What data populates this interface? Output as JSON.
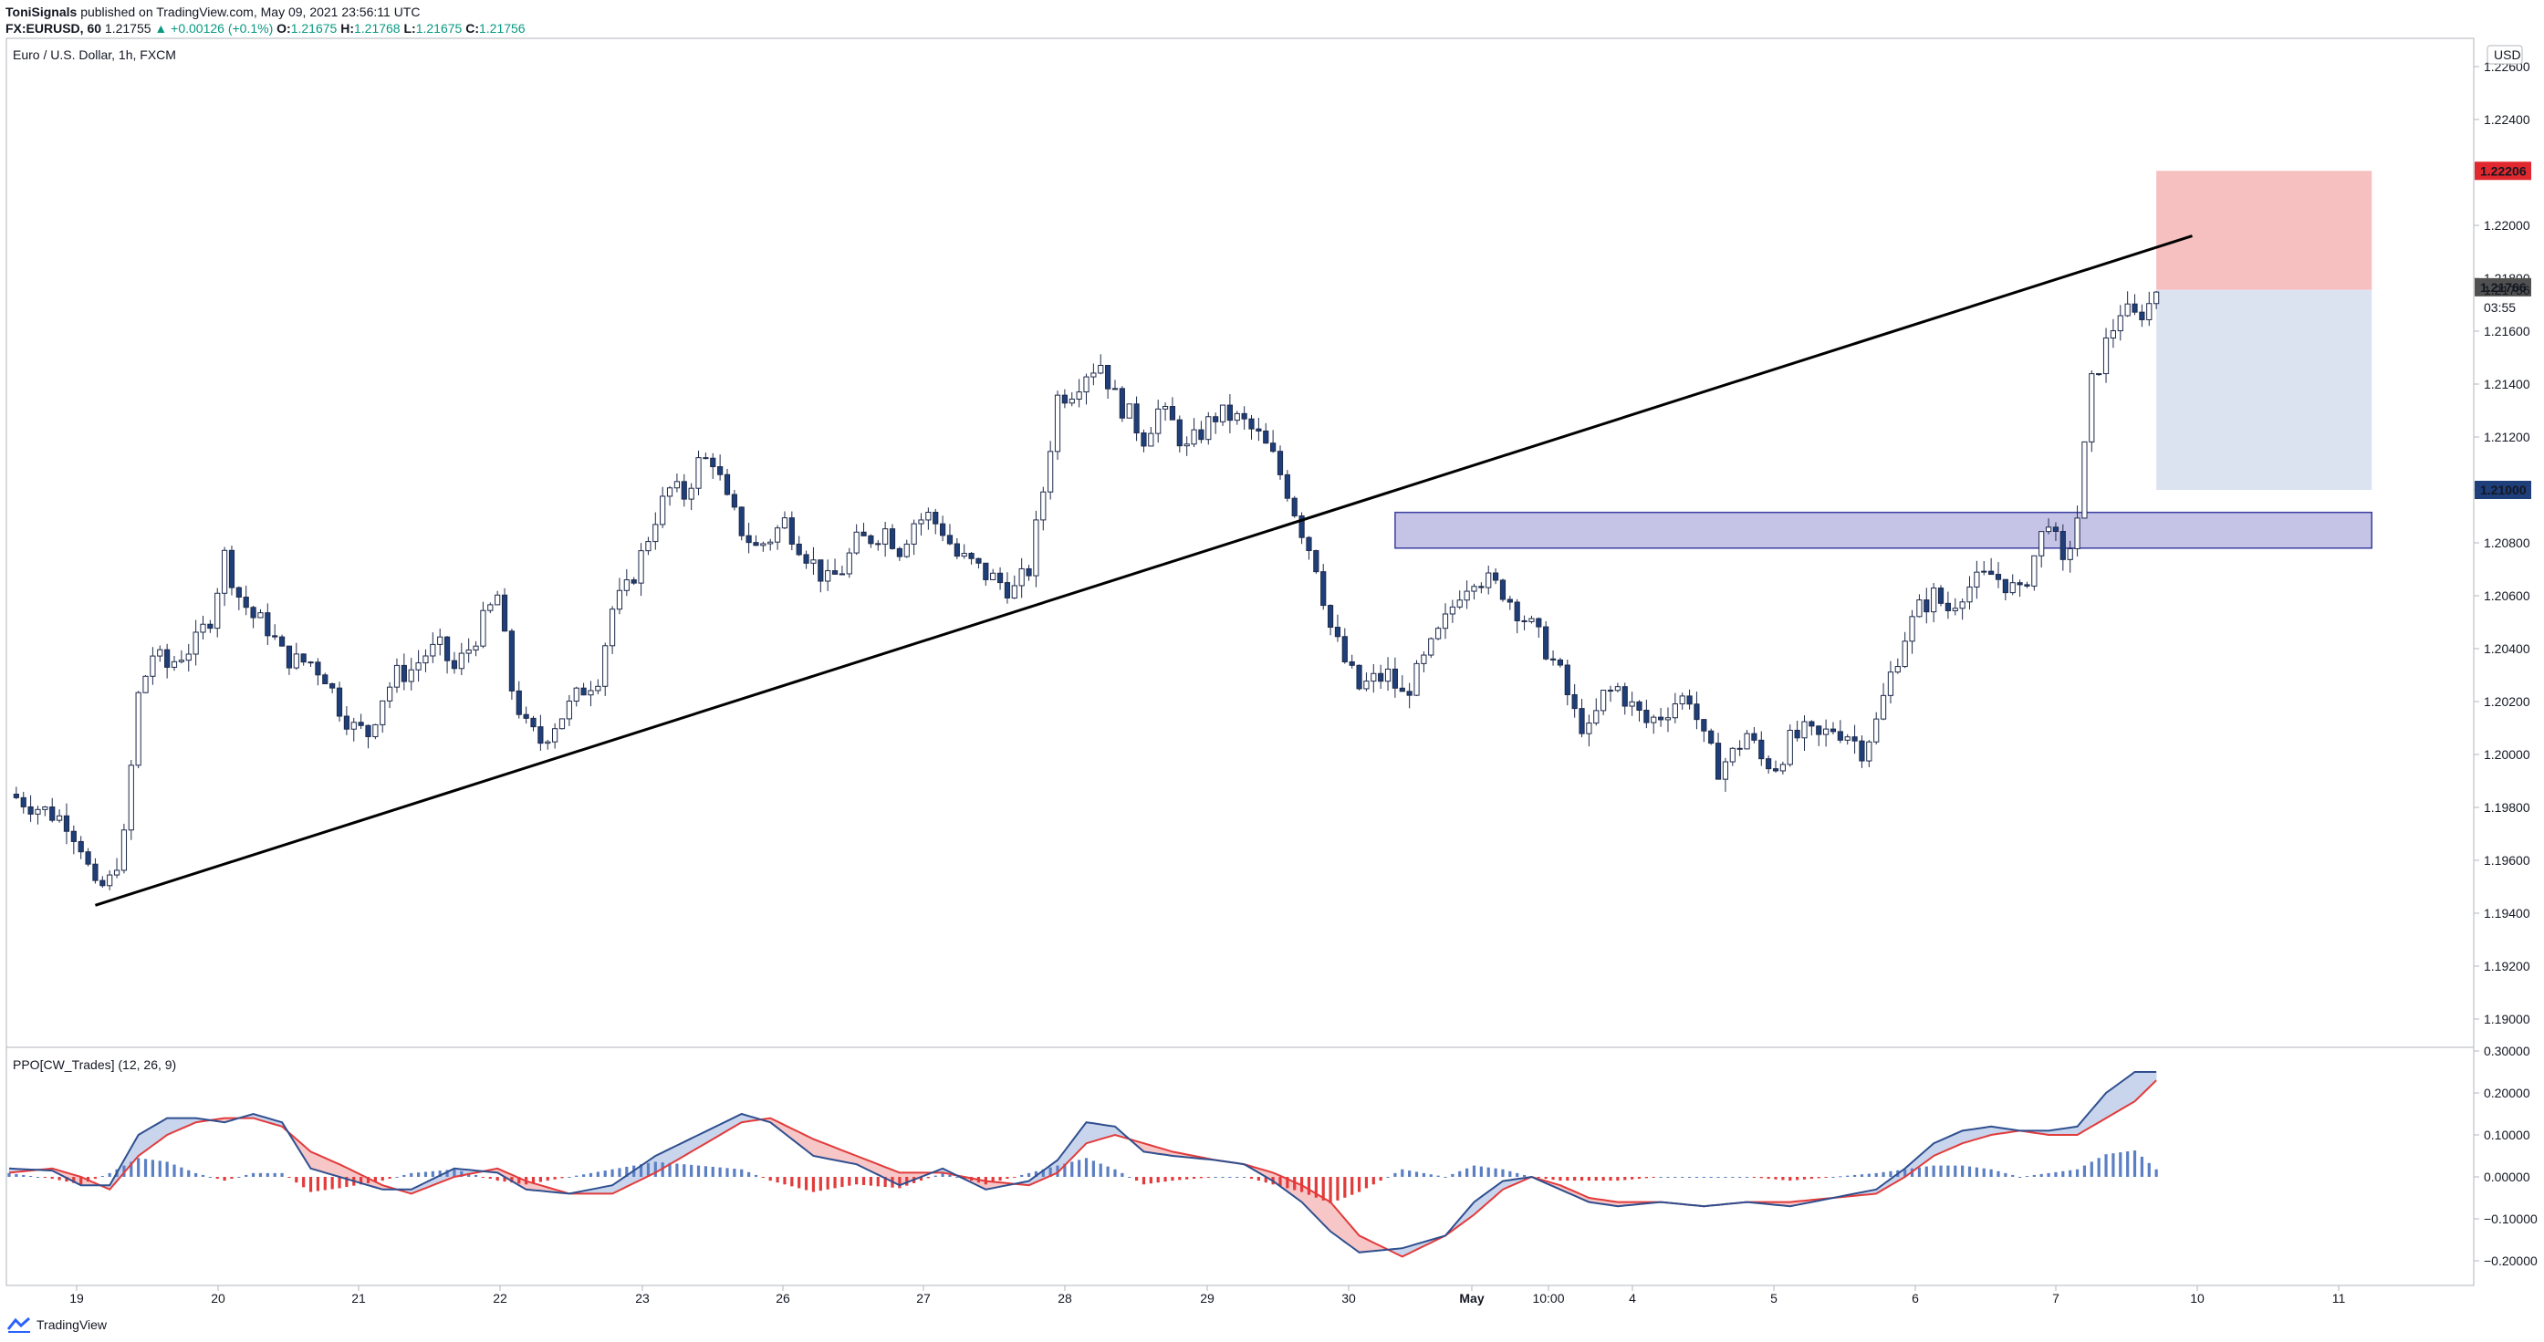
{
  "header": {
    "publisher": "ToniSignals",
    "published_line": " published on TradingView.com, May 09, 2021 23:56:11 UTC",
    "symbol": "FX:EURUSD, 60",
    "last": "1.21755",
    "change": "▲ +0.00126 (+0.1%)",
    "o_label": "O:",
    "o": "1.21675",
    "h_label": "H:",
    "h": "1.21768",
    "l_label": "L:",
    "l": "1.21675",
    "c_label": "C:",
    "c": "1.21756"
  },
  "chart_title": "Euro / U.S. Dollar, 1h, FXCM",
  "currency_badge": "USD",
  "indicator_title": "PPO[CW_Trades] (12, 26, 9)",
  "footer": {
    "brand": "TradingView"
  },
  "colors": {
    "candle_up": "#ffffff",
    "candle_down": "#1e3f7a",
    "stop_zone": "#f7c0c0",
    "target_zone": "#dbe3f0",
    "demand_zone": "#c5c3e6",
    "ppo_blue": "#5b7fc4",
    "ppo_red": "#e23b3b",
    "ppo_fill_blue": "#c9d5ec",
    "ppo_fill_red": "#f7c6c6",
    "price_badge_red": "#e0282e",
    "price_badge_blue": "#1e3f7a",
    "price_badge_gray": "#505050"
  },
  "chart_data": [
    {
      "type": "candlestick",
      "title": "Euro / U.S. Dollar, 1h, FXCM",
      "x_tick_labels": [
        "19",
        "20",
        "21",
        "22",
        "23",
        "26",
        "27",
        "28",
        "29",
        "30",
        "May",
        "10:00",
        "4",
        "5",
        "6",
        "7",
        "10",
        "11"
      ],
      "y_tick_labels": [
        "1.22600",
        "1.22400",
        "1.22200",
        "1.22000",
        "1.21800",
        "1.21600",
        "1.21400",
        "1.21200",
        "1.21000",
        "1.20800",
        "1.20600",
        "1.20400",
        "1.20200",
        "1.20000",
        "1.19800",
        "1.19600",
        "1.19400",
        "1.19200",
        "1.19000"
      ],
      "ylim": [
        1.189,
        1.227
      ],
      "close_path": [
        [
          0,
          1.1985
        ],
        [
          4,
          1.198
        ],
        [
          8,
          1.1975
        ],
        [
          10,
          1.1966
        ],
        [
          12,
          1.1948
        ],
        [
          14,
          1.1952
        ],
        [
          16,
          1.1968
        ],
        [
          18,
          1.2022
        ],
        [
          20,
          1.2038
        ],
        [
          22,
          1.2033
        ],
        [
          24,
          1.2038
        ],
        [
          26,
          1.2042
        ],
        [
          28,
          1.2052
        ],
        [
          30,
          1.2075
        ],
        [
          32,
          1.206
        ],
        [
          34,
          1.2052
        ],
        [
          36,
          1.2048
        ],
        [
          38,
          1.2038
        ],
        [
          40,
          1.2035
        ],
        [
          42,
          1.2035
        ],
        [
          44,
          1.203
        ],
        [
          46,
          1.2018
        ],
        [
          48,
          1.201
        ],
        [
          50,
          1.2008
        ],
        [
          52,
          1.2022
        ],
        [
          54,
          1.203
        ],
        [
          56,
          1.2032
        ],
        [
          58,
          1.2038
        ],
        [
          60,
          1.204
        ],
        [
          62,
          1.2032
        ],
        [
          64,
          1.204
        ],
        [
          66,
          1.205
        ],
        [
          68,
          1.206
        ],
        [
          70,
          1.2025
        ],
        [
          72,
          1.201
        ],
        [
          74,
          1.2005
        ],
        [
          76,
          1.2012
        ],
        [
          78,
          1.2018
        ],
        [
          80,
          1.2025
        ],
        [
          82,
          1.203
        ],
        [
          84,
          1.2055
        ],
        [
          86,
          1.2062
        ],
        [
          88,
          1.2075
        ],
        [
          90,
          1.209
        ],
        [
          92,
          1.21
        ],
        [
          94,
          1.2098
        ],
        [
          96,
          1.211
        ],
        [
          98,
          1.2112
        ],
        [
          100,
          1.2095
        ],
        [
          102,
          1.2085
        ],
        [
          104,
          1.2078
        ],
        [
          106,
          1.2082
        ],
        [
          108,
          1.2088
        ],
        [
          110,
          1.208
        ],
        [
          112,
          1.2072
        ],
        [
          114,
          1.2065
        ],
        [
          116,
          1.207
        ],
        [
          118,
          1.208
        ],
        [
          120,
          1.2082
        ],
        [
          122,
          1.2085
        ],
        [
          124,
          1.2078
        ],
        [
          126,
          1.2088
        ],
        [
          128,
          1.209
        ],
        [
          130,
          1.2085
        ],
        [
          132,
          1.2075
        ],
        [
          134,
          1.2072
        ],
        [
          136,
          1.2068
        ],
        [
          138,
          1.2065
        ],
        [
          140,
          1.2062
        ],
        [
          142,
          1.207
        ],
        [
          144,
          1.21
        ],
        [
          146,
          1.2135
        ],
        [
          148,
          1.2138
        ],
        [
          150,
          1.2145
        ],
        [
          152,
          1.2148
        ],
        [
          154,
          1.2135
        ],
        [
          156,
          1.2128
        ],
        [
          158,
          1.212
        ],
        [
          160,
          1.213
        ],
        [
          162,
          1.2125
        ],
        [
          164,
          1.2115
        ],
        [
          166,
          1.2122
        ],
        [
          168,
          1.2128
        ],
        [
          170,
          1.2128
        ],
        [
          172,
          1.2125
        ],
        [
          174,
          1.212
        ],
        [
          176,
          1.2112
        ],
        [
          178,
          1.21
        ],
        [
          180,
          1.2085
        ],
        [
          182,
          1.2072
        ],
        [
          184,
          1.2048
        ],
        [
          186,
          1.2035
        ],
        [
          188,
          1.2025
        ],
        [
          190,
          1.2028
        ],
        [
          192,
          1.203
        ],
        [
          194,
          1.2022
        ],
        [
          196,
          1.203
        ],
        [
          198,
          1.204
        ],
        [
          200,
          1.205
        ],
        [
          202,
          1.2062
        ],
        [
          204,
          1.2068
        ],
        [
          206,
          1.2065
        ],
        [
          208,
          1.2062
        ],
        [
          210,
          1.2055
        ],
        [
          212,
          1.2048
        ],
        [
          214,
          1.204
        ],
        [
          216,
          1.203
        ],
        [
          218,
          1.2015
        ],
        [
          220,
          1.2008
        ],
        [
          222,
          1.2022
        ],
        [
          224,
          1.2025
        ],
        [
          226,
          1.2018
        ],
        [
          228,
          1.2012
        ],
        [
          230,
          1.2015
        ],
        [
          232,
          1.202
        ],
        [
          234,
          1.2022
        ],
        [
          236,
          1.2005
        ],
        [
          238,
          1.1995
        ],
        [
          240,
          1.2
        ],
        [
          242,
          1.2008
        ],
        [
          244,
          1.1998
        ],
        [
          246,
          1.1996
        ],
        [
          248,
          1.2005
        ],
        [
          250,
          1.2008
        ],
        [
          252,
          1.2006
        ],
        [
          254,
          1.201
        ],
        [
          256,
          1.2008
        ],
        [
          258,
          1.2002
        ],
        [
          260,
          1.2012
        ],
        [
          262,
          1.203
        ],
        [
          264,
          1.2045
        ],
        [
          266,
          1.2055
        ],
        [
          268,
          1.206
        ],
        [
          270,
          1.2055
        ],
        [
          272,
          1.2062
        ],
        [
          274,
          1.2065
        ],
        [
          276,
          1.2068
        ],
        [
          278,
          1.2065
        ],
        [
          280,
          1.206
        ],
        [
          282,
          1.2075
        ],
        [
          284,
          1.209
        ],
        [
          286,
          1.207
        ],
        [
          288,
          1.209
        ],
        [
          290,
          1.214
        ],
        [
          292,
          1.2155
        ],
        [
          294,
          1.2168
        ],
        [
          296,
          1.2165
        ],
        [
          298,
          1.217
        ],
        [
          299,
          1.2176
        ]
      ],
      "annotations": {
        "trendline": {
          "from": [
            12,
            1.1943
          ],
          "to": [
            304,
            1.2196
          ]
        },
        "stop_zone": {
          "x_range": [
            299,
            329
          ],
          "y_range": [
            1.21756,
            1.22206
          ]
        },
        "target_zone": {
          "x_range": [
            299,
            329
          ],
          "y_range": [
            1.21,
            1.21756
          ]
        },
        "demand_zone": {
          "x_range": [
            193,
            329
          ],
          "y_range": [
            1.2078,
            1.20915
          ]
        }
      },
      "price_labels": [
        {
          "text": "1.22206",
          "value": 1.22206,
          "kind": "red"
        },
        {
          "text": "1.21766",
          "value": 1.21766,
          "kind": "gray"
        },
        {
          "text": "1.21756",
          "value": 1.21756,
          "kind": "plain"
        },
        {
          "text": "03:55",
          "value": 1.2169,
          "kind": "plain"
        },
        {
          "text": "1.21000",
          "value": 1.21,
          "kind": "blue"
        }
      ]
    },
    {
      "type": "area",
      "title": "PPO[CW_Trades] (12, 26, 9)",
      "y_tick_labels": [
        "0.30000",
        "0.20000",
        "0.10000",
        "0.00000",
        "−0.10000",
        "−0.20000"
      ],
      "ylim": [
        -0.25,
        0.3
      ],
      "series": [
        {
          "name": "PPO",
          "points": [
            [
              0,
              0.02
            ],
            [
              6,
              0.015
            ],
            [
              10,
              -0.02
            ],
            [
              14,
              -0.02
            ],
            [
              18,
              0.1
            ],
            [
              22,
              0.14
            ],
            [
              26,
              0.14
            ],
            [
              30,
              0.13
            ],
            [
              34,
              0.15
            ],
            [
              38,
              0.13
            ],
            [
              42,
              0.02
            ],
            [
              46,
              0.0
            ],
            [
              52,
              -0.03
            ],
            [
              56,
              -0.03
            ],
            [
              62,
              0.02
            ],
            [
              68,
              0.01
            ],
            [
              72,
              -0.03
            ],
            [
              78,
              -0.04
            ],
            [
              84,
              -0.02
            ],
            [
              90,
              0.05
            ],
            [
              96,
              0.1
            ],
            [
              102,
              0.15
            ],
            [
              106,
              0.13
            ],
            [
              112,
              0.05
            ],
            [
              118,
              0.03
            ],
            [
              124,
              -0.02
            ],
            [
              130,
              0.02
            ],
            [
              136,
              -0.03
            ],
            [
              142,
              -0.01
            ],
            [
              146,
              0.04
            ],
            [
              150,
              0.13
            ],
            [
              154,
              0.12
            ],
            [
              158,
              0.06
            ],
            [
              162,
              0.05
            ],
            [
              168,
              0.04
            ],
            [
              172,
              0.03
            ],
            [
              176,
              -0.01
            ],
            [
              180,
              -0.06
            ],
            [
              184,
              -0.13
            ],
            [
              188,
              -0.18
            ],
            [
              194,
              -0.17
            ],
            [
              200,
              -0.14
            ],
            [
              204,
              -0.06
            ],
            [
              208,
              -0.01
            ],
            [
              212,
              0.0
            ],
            [
              216,
              -0.03
            ],
            [
              220,
              -0.06
            ],
            [
              224,
              -0.07
            ],
            [
              230,
              -0.06
            ],
            [
              236,
              -0.07
            ],
            [
              242,
              -0.06
            ],
            [
              248,
              -0.07
            ],
            [
              254,
              -0.05
            ],
            [
              260,
              -0.03
            ],
            [
              264,
              0.02
            ],
            [
              268,
              0.08
            ],
            [
              272,
              0.11
            ],
            [
              276,
              0.12
            ],
            [
              280,
              0.11
            ],
            [
              284,
              0.11
            ],
            [
              288,
              0.12
            ],
            [
              292,
              0.2
            ],
            [
              296,
              0.25
            ],
            [
              299,
              0.25
            ]
          ]
        },
        {
          "name": "Signal",
          "points": [
            [
              0,
              0.01
            ],
            [
              6,
              0.02
            ],
            [
              10,
              0.0
            ],
            [
              14,
              -0.03
            ],
            [
              18,
              0.05
            ],
            [
              22,
              0.1
            ],
            [
              26,
              0.13
            ],
            [
              30,
              0.14
            ],
            [
              34,
              0.14
            ],
            [
              38,
              0.12
            ],
            [
              42,
              0.06
            ],
            [
              46,
              0.03
            ],
            [
              52,
              -0.02
            ],
            [
              56,
              -0.04
            ],
            [
              62,
              0.0
            ],
            [
              68,
              0.02
            ],
            [
              72,
              -0.01
            ],
            [
              78,
              -0.04
            ],
            [
              84,
              -0.04
            ],
            [
              90,
              0.01
            ],
            [
              96,
              0.07
            ],
            [
              102,
              0.13
            ],
            [
              106,
              0.14
            ],
            [
              112,
              0.09
            ],
            [
              118,
              0.05
            ],
            [
              124,
              0.01
            ],
            [
              130,
              0.01
            ],
            [
              136,
              -0.01
            ],
            [
              142,
              -0.02
            ],
            [
              146,
              0.01
            ],
            [
              150,
              0.08
            ],
            [
              154,
              0.1
            ],
            [
              158,
              0.08
            ],
            [
              162,
              0.06
            ],
            [
              168,
              0.04
            ],
            [
              172,
              0.03
            ],
            [
              176,
              0.01
            ],
            [
              180,
              -0.02
            ],
            [
              184,
              -0.06
            ],
            [
              188,
              -0.14
            ],
            [
              194,
              -0.19
            ],
            [
              200,
              -0.14
            ],
            [
              204,
              -0.09
            ],
            [
              208,
              -0.03
            ],
            [
              212,
              0.0
            ],
            [
              216,
              -0.02
            ],
            [
              220,
              -0.05
            ],
            [
              224,
              -0.06
            ],
            [
              230,
              -0.06
            ],
            [
              236,
              -0.07
            ],
            [
              242,
              -0.06
            ],
            [
              248,
              -0.06
            ],
            [
              254,
              -0.05
            ],
            [
              260,
              -0.04
            ],
            [
              264,
              0.0
            ],
            [
              268,
              0.05
            ],
            [
              272,
              0.08
            ],
            [
              276,
              0.1
            ],
            [
              280,
              0.11
            ],
            [
              284,
              0.1
            ],
            [
              288,
              0.1
            ],
            [
              292,
              0.14
            ],
            [
              296,
              0.18
            ],
            [
              299,
              0.23
            ]
          ]
        }
      ]
    }
  ]
}
